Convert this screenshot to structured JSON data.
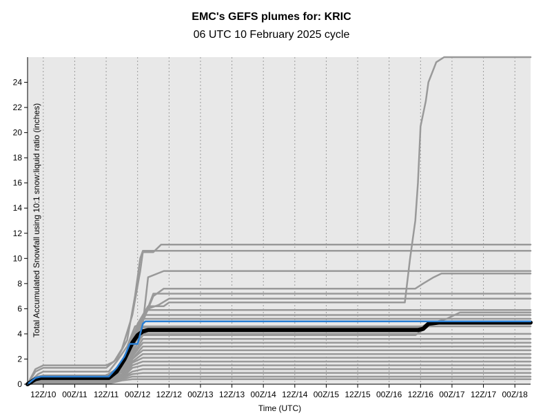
{
  "header": {
    "title": "EMC's GEFS plumes for: KRIC",
    "subtitle": "06 UTC 10 February 2025 cycle"
  },
  "chart_data": {
    "type": "line",
    "xlabel": "Time (UTC)",
    "ylabel": "Total Accumulated Snowfall using 10:1 snow:liquid ratio (inches)",
    "x_unit": "hours after 06Z/10",
    "xlim": [
      0,
      192
    ],
    "ylim": [
      0,
      26
    ],
    "yticks": [
      0,
      2,
      4,
      6,
      8,
      10,
      12,
      14,
      16,
      18,
      20,
      22,
      24
    ],
    "xticks": [
      {
        "x": 6,
        "label": "12Z/10"
      },
      {
        "x": 18,
        "label": "00Z/11"
      },
      {
        "x": 30,
        "label": "12Z/11"
      },
      {
        "x": 42,
        "label": "00Z/12"
      },
      {
        "x": 54,
        "label": "12Z/12"
      },
      {
        "x": 66,
        "label": "00Z/13"
      },
      {
        "x": 78,
        "label": "12Z/13"
      },
      {
        "x": 90,
        "label": "00Z/14"
      },
      {
        "x": 102,
        "label": "12Z/14"
      },
      {
        "x": 114,
        "label": "00Z/15"
      },
      {
        "x": 126,
        "label": "12Z/15"
      },
      {
        "x": 138,
        "label": "00Z/16"
      },
      {
        "x": 150,
        "label": "12Z/16"
      },
      {
        "x": 162,
        "label": "00Z/17"
      },
      {
        "x": 174,
        "label": "12Z/17"
      },
      {
        "x": 186,
        "label": "00Z/18"
      }
    ],
    "grid": "vertical dotted at x ticks",
    "colors": {
      "member": "#999999",
      "mean": "#000000",
      "control": "#2a7fd4",
      "plot_bg": "#e8e8e8"
    },
    "series": [
      {
        "role": "member",
        "points": [
          [
            0,
            0
          ],
          [
            3,
            1.2
          ],
          [
            6,
            1.5
          ],
          [
            30,
            1.5
          ],
          [
            33,
            1.8
          ],
          [
            36,
            2.8
          ],
          [
            40,
            5.5
          ],
          [
            43,
            9
          ],
          [
            44,
            10.5
          ],
          [
            48,
            10.5
          ],
          [
            51,
            11.1
          ],
          [
            192,
            11.1
          ]
        ]
      },
      {
        "role": "member",
        "points": [
          [
            0,
            0
          ],
          [
            3,
            1.0
          ],
          [
            6,
            1.3
          ],
          [
            30,
            1.3
          ],
          [
            34,
            2.0
          ],
          [
            38,
            3.5
          ],
          [
            41,
            7
          ],
          [
            43,
            10
          ],
          [
            44,
            10.6
          ],
          [
            192,
            10.6
          ]
        ]
      },
      {
        "role": "member",
        "points": [
          [
            0,
            0
          ],
          [
            4,
            0.8
          ],
          [
            6,
            1.0
          ],
          [
            31,
            1.0
          ],
          [
            34,
            1.8
          ],
          [
            38,
            3.0
          ],
          [
            41,
            4.6
          ],
          [
            44,
            4.8
          ],
          [
            46,
            8.5
          ],
          [
            52,
            9.0
          ],
          [
            192,
            9.0
          ]
        ]
      },
      {
        "role": "member",
        "points": [
          [
            0,
            0
          ],
          [
            4,
            0.5
          ],
          [
            6,
            0.6
          ],
          [
            30,
            0.6
          ],
          [
            36,
            1.0
          ],
          [
            40,
            3
          ],
          [
            44,
            5
          ],
          [
            48,
            7.0
          ],
          [
            52,
            7.6
          ],
          [
            148,
            7.6
          ],
          [
            151,
            8.0
          ],
          [
            155,
            8.5
          ],
          [
            158,
            8.8
          ],
          [
            192,
            8.8
          ]
        ]
      },
      {
        "role": "member",
        "points": [
          [
            0,
            0
          ],
          [
            4,
            0.6
          ],
          [
            6,
            0.7
          ],
          [
            30,
            0.7
          ],
          [
            34,
            1.2
          ],
          [
            38,
            2.5
          ],
          [
            41,
            4.0
          ],
          [
            44,
            5.0
          ],
          [
            48,
            7.2
          ],
          [
            52,
            7.2
          ],
          [
            192,
            7.2
          ]
        ]
      },
      {
        "role": "member",
        "points": [
          [
            0,
            0
          ],
          [
            4,
            0.5
          ],
          [
            6,
            0.6
          ],
          [
            30,
            0.6
          ],
          [
            34,
            1.0
          ],
          [
            38,
            2.2
          ],
          [
            42,
            4.8
          ],
          [
            46,
            6.2
          ],
          [
            52,
            6.2
          ],
          [
            54,
            6.5
          ],
          [
            144,
            6.5
          ],
          [
            146,
            10
          ],
          [
            148,
            13
          ],
          [
            149,
            16
          ],
          [
            150,
            20.5
          ],
          [
            152,
            22.5
          ],
          [
            153,
            24
          ],
          [
            156,
            25.6
          ],
          [
            159,
            26
          ],
          [
            192,
            26
          ]
        ]
      },
      {
        "role": "member",
        "points": [
          [
            0,
            0
          ],
          [
            4,
            0.5
          ],
          [
            6,
            0.6
          ],
          [
            30,
            0.6
          ],
          [
            34,
            1.0
          ],
          [
            38,
            2.5
          ],
          [
            42,
            4.5
          ],
          [
            46,
            6.0
          ],
          [
            50,
            6.3
          ],
          [
            54,
            6.8
          ],
          [
            192,
            6.8
          ]
        ]
      },
      {
        "role": "member",
        "points": [
          [
            0,
            0
          ],
          [
            4,
            0.4
          ],
          [
            6,
            0.5
          ],
          [
            32,
            0.5
          ],
          [
            36,
            1.0
          ],
          [
            40,
            3.5
          ],
          [
            43,
            5.0
          ],
          [
            46,
            5.9
          ],
          [
            192,
            5.9
          ]
        ]
      },
      {
        "role": "member",
        "points": [
          [
            0,
            0
          ],
          [
            4,
            0.4
          ],
          [
            6,
            0.5
          ],
          [
            32,
            0.5
          ],
          [
            36,
            1.2
          ],
          [
            40,
            3.8
          ],
          [
            44,
            5.5
          ],
          [
            192,
            5.5
          ]
        ]
      },
      {
        "role": "member",
        "points": [
          [
            0,
            0
          ],
          [
            4,
            0.3
          ],
          [
            6,
            0.4
          ],
          [
            32,
            0.4
          ],
          [
            36,
            1.0
          ],
          [
            40,
            3.0
          ],
          [
            44,
            5.2
          ],
          [
            192,
            5.2
          ]
        ]
      },
      {
        "role": "member",
        "points": [
          [
            0,
            0
          ],
          [
            4,
            0.4
          ],
          [
            6,
            0.5
          ],
          [
            32,
            0.5
          ],
          [
            36,
            1.0
          ],
          [
            40,
            3.0
          ],
          [
            44,
            4.5
          ],
          [
            150,
            4.5
          ],
          [
            154,
            5.0
          ],
          [
            192,
            5.0
          ]
        ]
      },
      {
        "role": "member",
        "points": [
          [
            0,
            0
          ],
          [
            4,
            0.3
          ],
          [
            6,
            0.4
          ],
          [
            32,
            0.4
          ],
          [
            36,
            0.8
          ],
          [
            40,
            2.8
          ],
          [
            44,
            4.6
          ],
          [
            192,
            4.6
          ]
        ]
      },
      {
        "role": "member",
        "points": [
          [
            0,
            0
          ],
          [
            4,
            0.3
          ],
          [
            6,
            0.4
          ],
          [
            32,
            0.4
          ],
          [
            36,
            0.8
          ],
          [
            40,
            2.5
          ],
          [
            44,
            4.0
          ],
          [
            192,
            4.0
          ]
        ]
      },
      {
        "role": "member",
        "points": [
          [
            0,
            0
          ],
          [
            4,
            0.3
          ],
          [
            6,
            0.4
          ],
          [
            32,
            0.4
          ],
          [
            36,
            0.8
          ],
          [
            40,
            2.3
          ],
          [
            44,
            3.6
          ],
          [
            192,
            3.6
          ]
        ]
      },
      {
        "role": "member",
        "points": [
          [
            0,
            0
          ],
          [
            4,
            0.3
          ],
          [
            6,
            0.4
          ],
          [
            32,
            0.4
          ],
          [
            36,
            0.8
          ],
          [
            40,
            2.2
          ],
          [
            44,
            3.3
          ],
          [
            192,
            3.3
          ]
        ]
      },
      {
        "role": "member",
        "points": [
          [
            0,
            0
          ],
          [
            4,
            0.3
          ],
          [
            6,
            0.4
          ],
          [
            32,
            0.4
          ],
          [
            36,
            0.7
          ],
          [
            40,
            2.0
          ],
          [
            44,
            3.0
          ],
          [
            192,
            3.0
          ]
        ]
      },
      {
        "role": "member",
        "points": [
          [
            0,
            0
          ],
          [
            4,
            0.3
          ],
          [
            6,
            0.4
          ],
          [
            32,
            0.4
          ],
          [
            36,
            0.7
          ],
          [
            40,
            2.0
          ],
          [
            44,
            2.7
          ],
          [
            192,
            2.7
          ]
        ]
      },
      {
        "role": "member",
        "points": [
          [
            0,
            0
          ],
          [
            4,
            0.2
          ],
          [
            6,
            0.3
          ],
          [
            32,
            0.3
          ],
          [
            36,
            0.6
          ],
          [
            40,
            1.8
          ],
          [
            44,
            2.4
          ],
          [
            192,
            2.4
          ]
        ]
      },
      {
        "role": "member",
        "points": [
          [
            0,
            0
          ],
          [
            4,
            0.2
          ],
          [
            6,
            0.3
          ],
          [
            32,
            0.3
          ],
          [
            36,
            0.6
          ],
          [
            40,
            1.7
          ],
          [
            44,
            2.1
          ],
          [
            192,
            2.1
          ]
        ]
      },
      {
        "role": "member",
        "points": [
          [
            0,
            0
          ],
          [
            4,
            0.2
          ],
          [
            6,
            0.3
          ],
          [
            32,
            0.3
          ],
          [
            36,
            0.6
          ],
          [
            40,
            1.5
          ],
          [
            44,
            1.8
          ],
          [
            192,
            1.8
          ]
        ]
      },
      {
        "role": "member",
        "points": [
          [
            0,
            0
          ],
          [
            4,
            0.2
          ],
          [
            6,
            0.3
          ],
          [
            32,
            0.3
          ],
          [
            36,
            0.5
          ],
          [
            40,
            1.3
          ],
          [
            44,
            1.5
          ],
          [
            192,
            1.5
          ]
        ]
      },
      {
        "role": "member",
        "points": [
          [
            0,
            0
          ],
          [
            4,
            0.2
          ],
          [
            6,
            0.3
          ],
          [
            32,
            0.3
          ],
          [
            36,
            0.5
          ],
          [
            40,
            1.0
          ],
          [
            44,
            1.2
          ],
          [
            192,
            1.2
          ]
        ]
      },
      {
        "role": "member",
        "points": [
          [
            0,
            0
          ],
          [
            4,
            0.2
          ],
          [
            6,
            0.3
          ],
          [
            32,
            0.3
          ],
          [
            36,
            0.5
          ],
          [
            40,
            0.8
          ],
          [
            44,
            0.9
          ],
          [
            192,
            0.9
          ]
        ]
      },
      {
        "role": "member",
        "points": [
          [
            0,
            0
          ],
          [
            4,
            0.1
          ],
          [
            6,
            0.2
          ],
          [
            32,
            0.2
          ],
          [
            36,
            0.4
          ],
          [
            40,
            0.6
          ],
          [
            44,
            0.6
          ],
          [
            192,
            0.6
          ]
        ]
      },
      {
        "role": "member",
        "points": [
          [
            0,
            0
          ],
          [
            4,
            0.3
          ],
          [
            6,
            0.4
          ],
          [
            32,
            0.4
          ],
          [
            36,
            0.8
          ],
          [
            40,
            2.6
          ],
          [
            44,
            3.9
          ],
          [
            148,
            3.9
          ],
          [
            155,
            4.9
          ],
          [
            160,
            5.2
          ],
          [
            165,
            5.7
          ],
          [
            192,
            5.7
          ]
        ]
      },
      {
        "role": "member",
        "points": [
          [
            0,
            0
          ],
          [
            4,
            0.1
          ],
          [
            6,
            0.1
          ],
          [
            32,
            0.1
          ],
          [
            36,
            0.3
          ],
          [
            40,
            0.4
          ],
          [
            44,
            0.4
          ],
          [
            192,
            0.4
          ]
        ]
      },
      {
        "role": "control",
        "points": [
          [
            0,
            0
          ],
          [
            3,
            0.5
          ],
          [
            5,
            0.6
          ],
          [
            31,
            0.6
          ],
          [
            34,
            1.3
          ],
          [
            37,
            2.2
          ],
          [
            39,
            3.2
          ],
          [
            42,
            3.2
          ],
          [
            44,
            4.8
          ],
          [
            45,
            5.0
          ],
          [
            192,
            5.0
          ]
        ]
      },
      {
        "role": "mean",
        "points": [
          [
            0,
            0
          ],
          [
            3,
            0.4
          ],
          [
            5,
            0.5
          ],
          [
            31,
            0.5
          ],
          [
            34,
            1.0
          ],
          [
            37,
            2.0
          ],
          [
            40,
            3.3
          ],
          [
            42,
            3.9
          ],
          [
            44,
            4.2
          ],
          [
            46,
            4.3
          ],
          [
            149,
            4.3
          ],
          [
            151,
            4.4
          ],
          [
            153,
            4.8
          ],
          [
            157,
            4.9
          ],
          [
            192,
            4.9
          ]
        ]
      }
    ]
  }
}
